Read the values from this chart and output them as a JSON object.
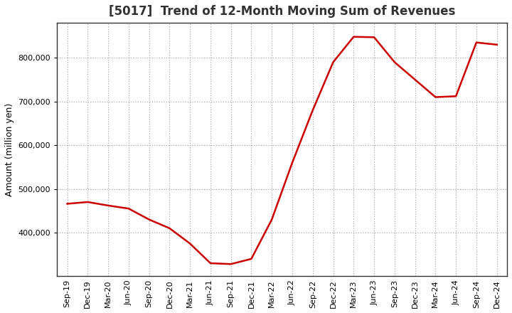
{
  "title": "[5017]  Trend of 12-Month Moving Sum of Revenues",
  "ylabel": "Amount (million yen)",
  "line_color": "#cc0000",
  "line_width": 1.8,
  "background_color": "#ffffff",
  "plot_bg_color": "#ffffff",
  "grid_color": "#999999",
  "ylim": [
    300000,
    880000
  ],
  "yticks": [
    400000,
    500000,
    600000,
    700000,
    800000
  ],
  "labels": [
    "Sep-19",
    "Dec-19",
    "Mar-20",
    "Jun-20",
    "Sep-20",
    "Dec-20",
    "Mar-21",
    "Jun-21",
    "Sep-21",
    "Dec-21",
    "Mar-22",
    "Jun-22",
    "Sep-22",
    "Dec-22",
    "Mar-23",
    "Jun-23",
    "Sep-23",
    "Dec-23",
    "Mar-24",
    "Jun-24",
    "Sep-24",
    "Dec-24"
  ],
  "values": [
    466000,
    470000,
    462000,
    455000,
    430000,
    410000,
    375000,
    330000,
    328000,
    340000,
    430000,
    560000,
    680000,
    790000,
    848000,
    847000,
    790000,
    750000,
    710000,
    712000,
    835000,
    830000
  ],
  "title_fontsize": 12,
  "ylabel_fontsize": 9,
  "tick_fontsize": 8
}
